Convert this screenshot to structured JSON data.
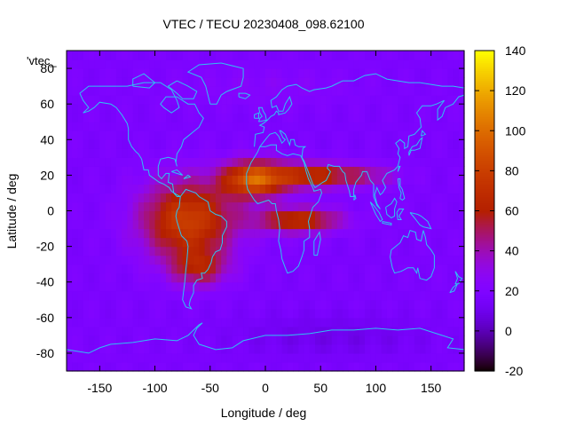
{
  "chart_data": {
    "type": "heatmap",
    "title": "VTEC / TECU 20230408_098.62100",
    "xlabel": "Longitude / deg",
    "ylabel": "Latitude / deg",
    "series_label": "'vtec_",
    "xlim": [
      -180,
      180
    ],
    "ylim": [
      -90,
      90
    ],
    "xticks": [
      -150,
      -100,
      -50,
      0,
      50,
      100,
      150
    ],
    "yticks": [
      -80,
      -60,
      -40,
      -20,
      0,
      20,
      40,
      60,
      80
    ],
    "colorbar": {
      "min": -20,
      "max": 140,
      "ticks": [
        -20,
        0,
        20,
        40,
        60,
        80,
        100,
        120,
        140
      ]
    },
    "field": {
      "background": 18,
      "blobs": [
        {
          "lon": -70,
          "lat": -5,
          "slon": 42,
          "slat": 22,
          "amp": 62
        },
        {
          "lon": -10,
          "lat": 18,
          "slon": 28,
          "slat": 10,
          "amp": 75
        },
        {
          "lon": 40,
          "lat": 20,
          "slon": 35,
          "slat": 7,
          "amp": 50
        },
        {
          "lon": 30,
          "lat": -5,
          "slon": 38,
          "slat": 7,
          "amp": 52
        },
        {
          "lon": -60,
          "lat": -32,
          "slon": 25,
          "slat": 10,
          "amp": 35
        },
        {
          "lon": 90,
          "lat": 20,
          "slon": 30,
          "slat": 6,
          "amp": 25
        },
        {
          "lon": 0,
          "lat": 70,
          "slon": 80,
          "slat": 12,
          "amp": 6
        },
        {
          "lon": 60,
          "lat": -70,
          "slon": 90,
          "slat": 12,
          "amp": -8
        }
      ]
    }
  }
}
